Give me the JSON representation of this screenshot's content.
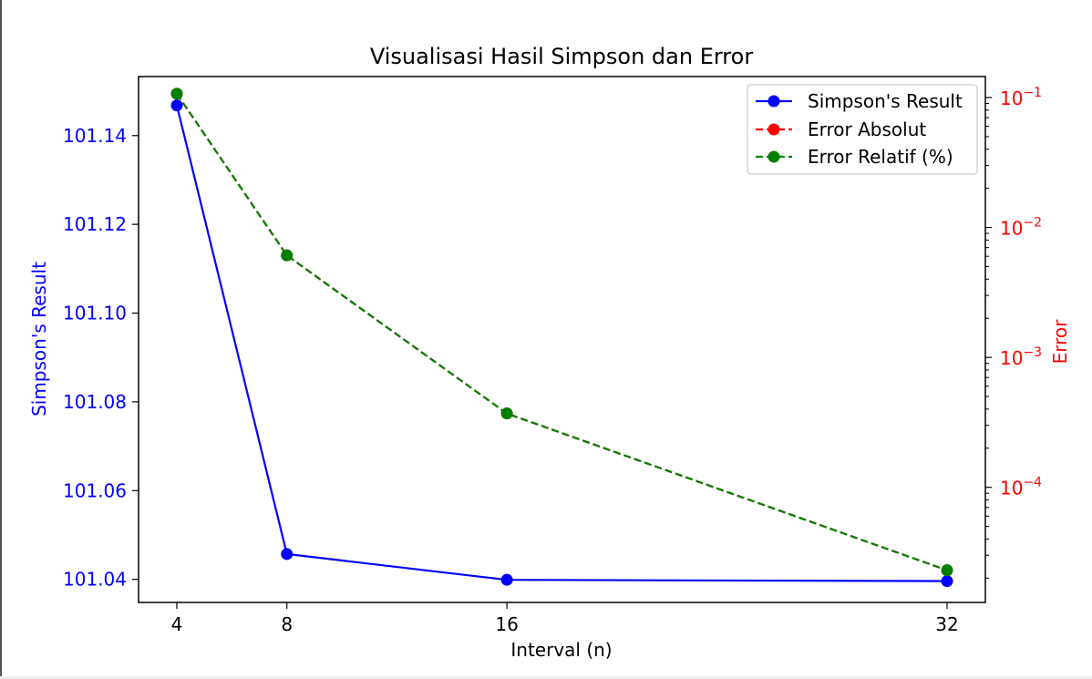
{
  "chart_data": {
    "type": "line",
    "title": "Visualisasi Hasil Simpson dan Error",
    "xlabel": "Interval (n)",
    "ylabel_left": "Simpson's Result",
    "ylabel_right": "Error",
    "x": [
      4,
      8,
      16,
      32
    ],
    "x_ticks": [
      "4",
      "8",
      "16",
      "32"
    ],
    "y_left_lim": [
      101.0348,
      101.1533
    ],
    "y_left_ticks": [
      "101.04",
      "101.06",
      "101.08",
      "101.10",
      "101.12",
      "101.14"
    ],
    "y_left_tick_values": [
      101.04,
      101.06,
      101.08,
      101.1,
      101.12,
      101.14
    ],
    "y_right_scale": "log",
    "y_right_lim": [
      1.3e-05,
      0.145
    ],
    "y_right_ticks": [
      {
        "base": "10",
        "exp": "−1",
        "value": 0.1
      },
      {
        "base": "10",
        "exp": "−2",
        "value": 0.01
      },
      {
        "base": "10",
        "exp": "−3",
        "value": 0.001
      },
      {
        "base": "10",
        "exp": "−4",
        "value": 0.0001
      }
    ],
    "legend_position": "top-right",
    "series": [
      {
        "name": "Simpson's Result",
        "axis": "left",
        "color": "#0000ff",
        "style": "solid",
        "values": [
          101.1468,
          101.0457,
          101.0399,
          101.0396
        ]
      },
      {
        "name": "Error Absolut",
        "axis": "right",
        "color": "#ff0000",
        "style": "dashed",
        "values": [
          0.107,
          0.0061,
          0.00037,
          2.3e-05
        ]
      },
      {
        "name": "Error Relatif (%)",
        "axis": "right",
        "color": "#008000",
        "style": "dashed",
        "values": [
          0.107,
          0.0061,
          0.00037,
          2.3e-05
        ]
      }
    ]
  }
}
